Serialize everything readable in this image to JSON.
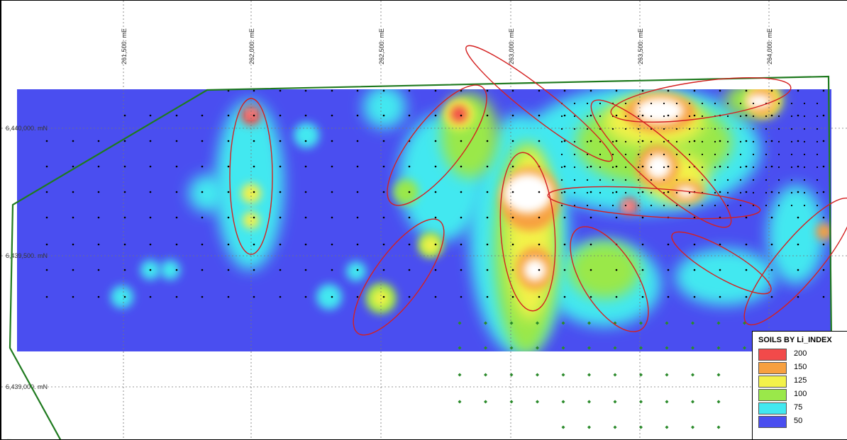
{
  "map": {
    "x_ticks": [
      "261,500. mE",
      "262,000. mE",
      "262,500. mE",
      "263,000. mE",
      "263,500. mE",
      "264,000. mE"
    ],
    "y_ticks": [
      "6,440,000. mN",
      "6,439,500. mN",
      "6,439,000. mN"
    ],
    "colors": {
      "background_low": "#4a4ef0",
      "grid_line": "#777777",
      "boundary": "#1f7a1f",
      "anomaly_outline": "#d42020",
      "sample_point": "#000000",
      "planned_sample": "#2a8a2a"
    }
  },
  "legend": {
    "title": "SOILS BY Li_INDEX",
    "items": [
      {
        "label": "200",
        "color": "#f24a4a"
      },
      {
        "label": "150",
        "color": "#f7a040"
      },
      {
        "label": "125",
        "color": "#f3f24a"
      },
      {
        "label": "100",
        "color": "#9ae84a"
      },
      {
        "label": "75",
        "color": "#42e8f0"
      },
      {
        "label": "50",
        "color": "#4a4ef0"
      }
    ]
  }
}
